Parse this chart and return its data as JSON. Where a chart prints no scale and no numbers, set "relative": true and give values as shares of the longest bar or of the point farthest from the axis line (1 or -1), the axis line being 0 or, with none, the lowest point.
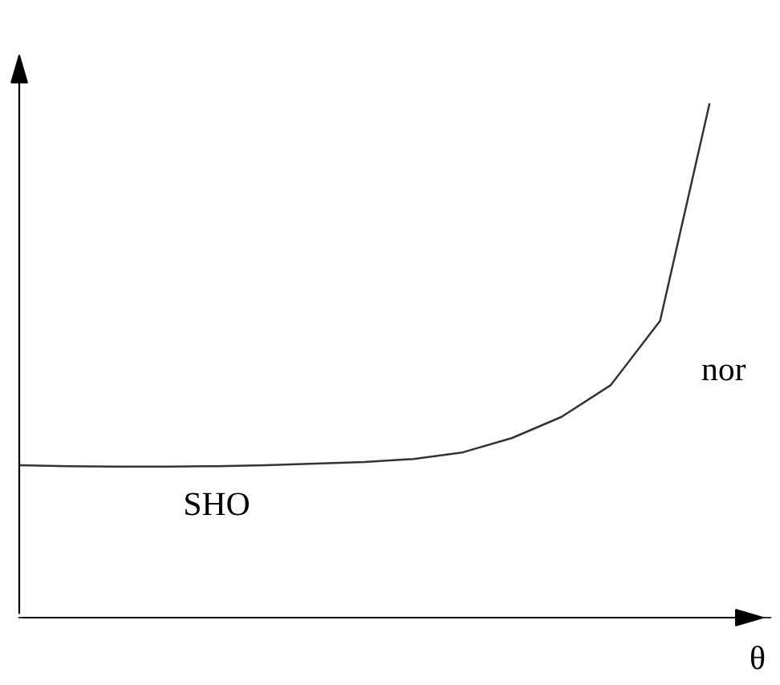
{
  "chart_data": {
    "type": "line",
    "relative": true,
    "xlabel": "θ",
    "annotations": [
      "SHO",
      "nor"
    ],
    "categories": [
      null,
      null,
      null,
      null,
      null,
      null,
      null,
      null,
      null,
      null,
      null,
      null,
      null,
      null,
      null
    ],
    "series": [
      {
        "color": "#333333",
        "values": [
          0.297,
          0.295,
          0.294,
          0.294,
          0.295,
          0.297,
          0.3,
          0.303,
          0.309,
          0.322,
          0.35,
          0.391,
          0.453,
          0.578,
          1
        ]
      }
    ],
    "legend": false,
    "marker": "none",
    "line_style": "solid"
  }
}
